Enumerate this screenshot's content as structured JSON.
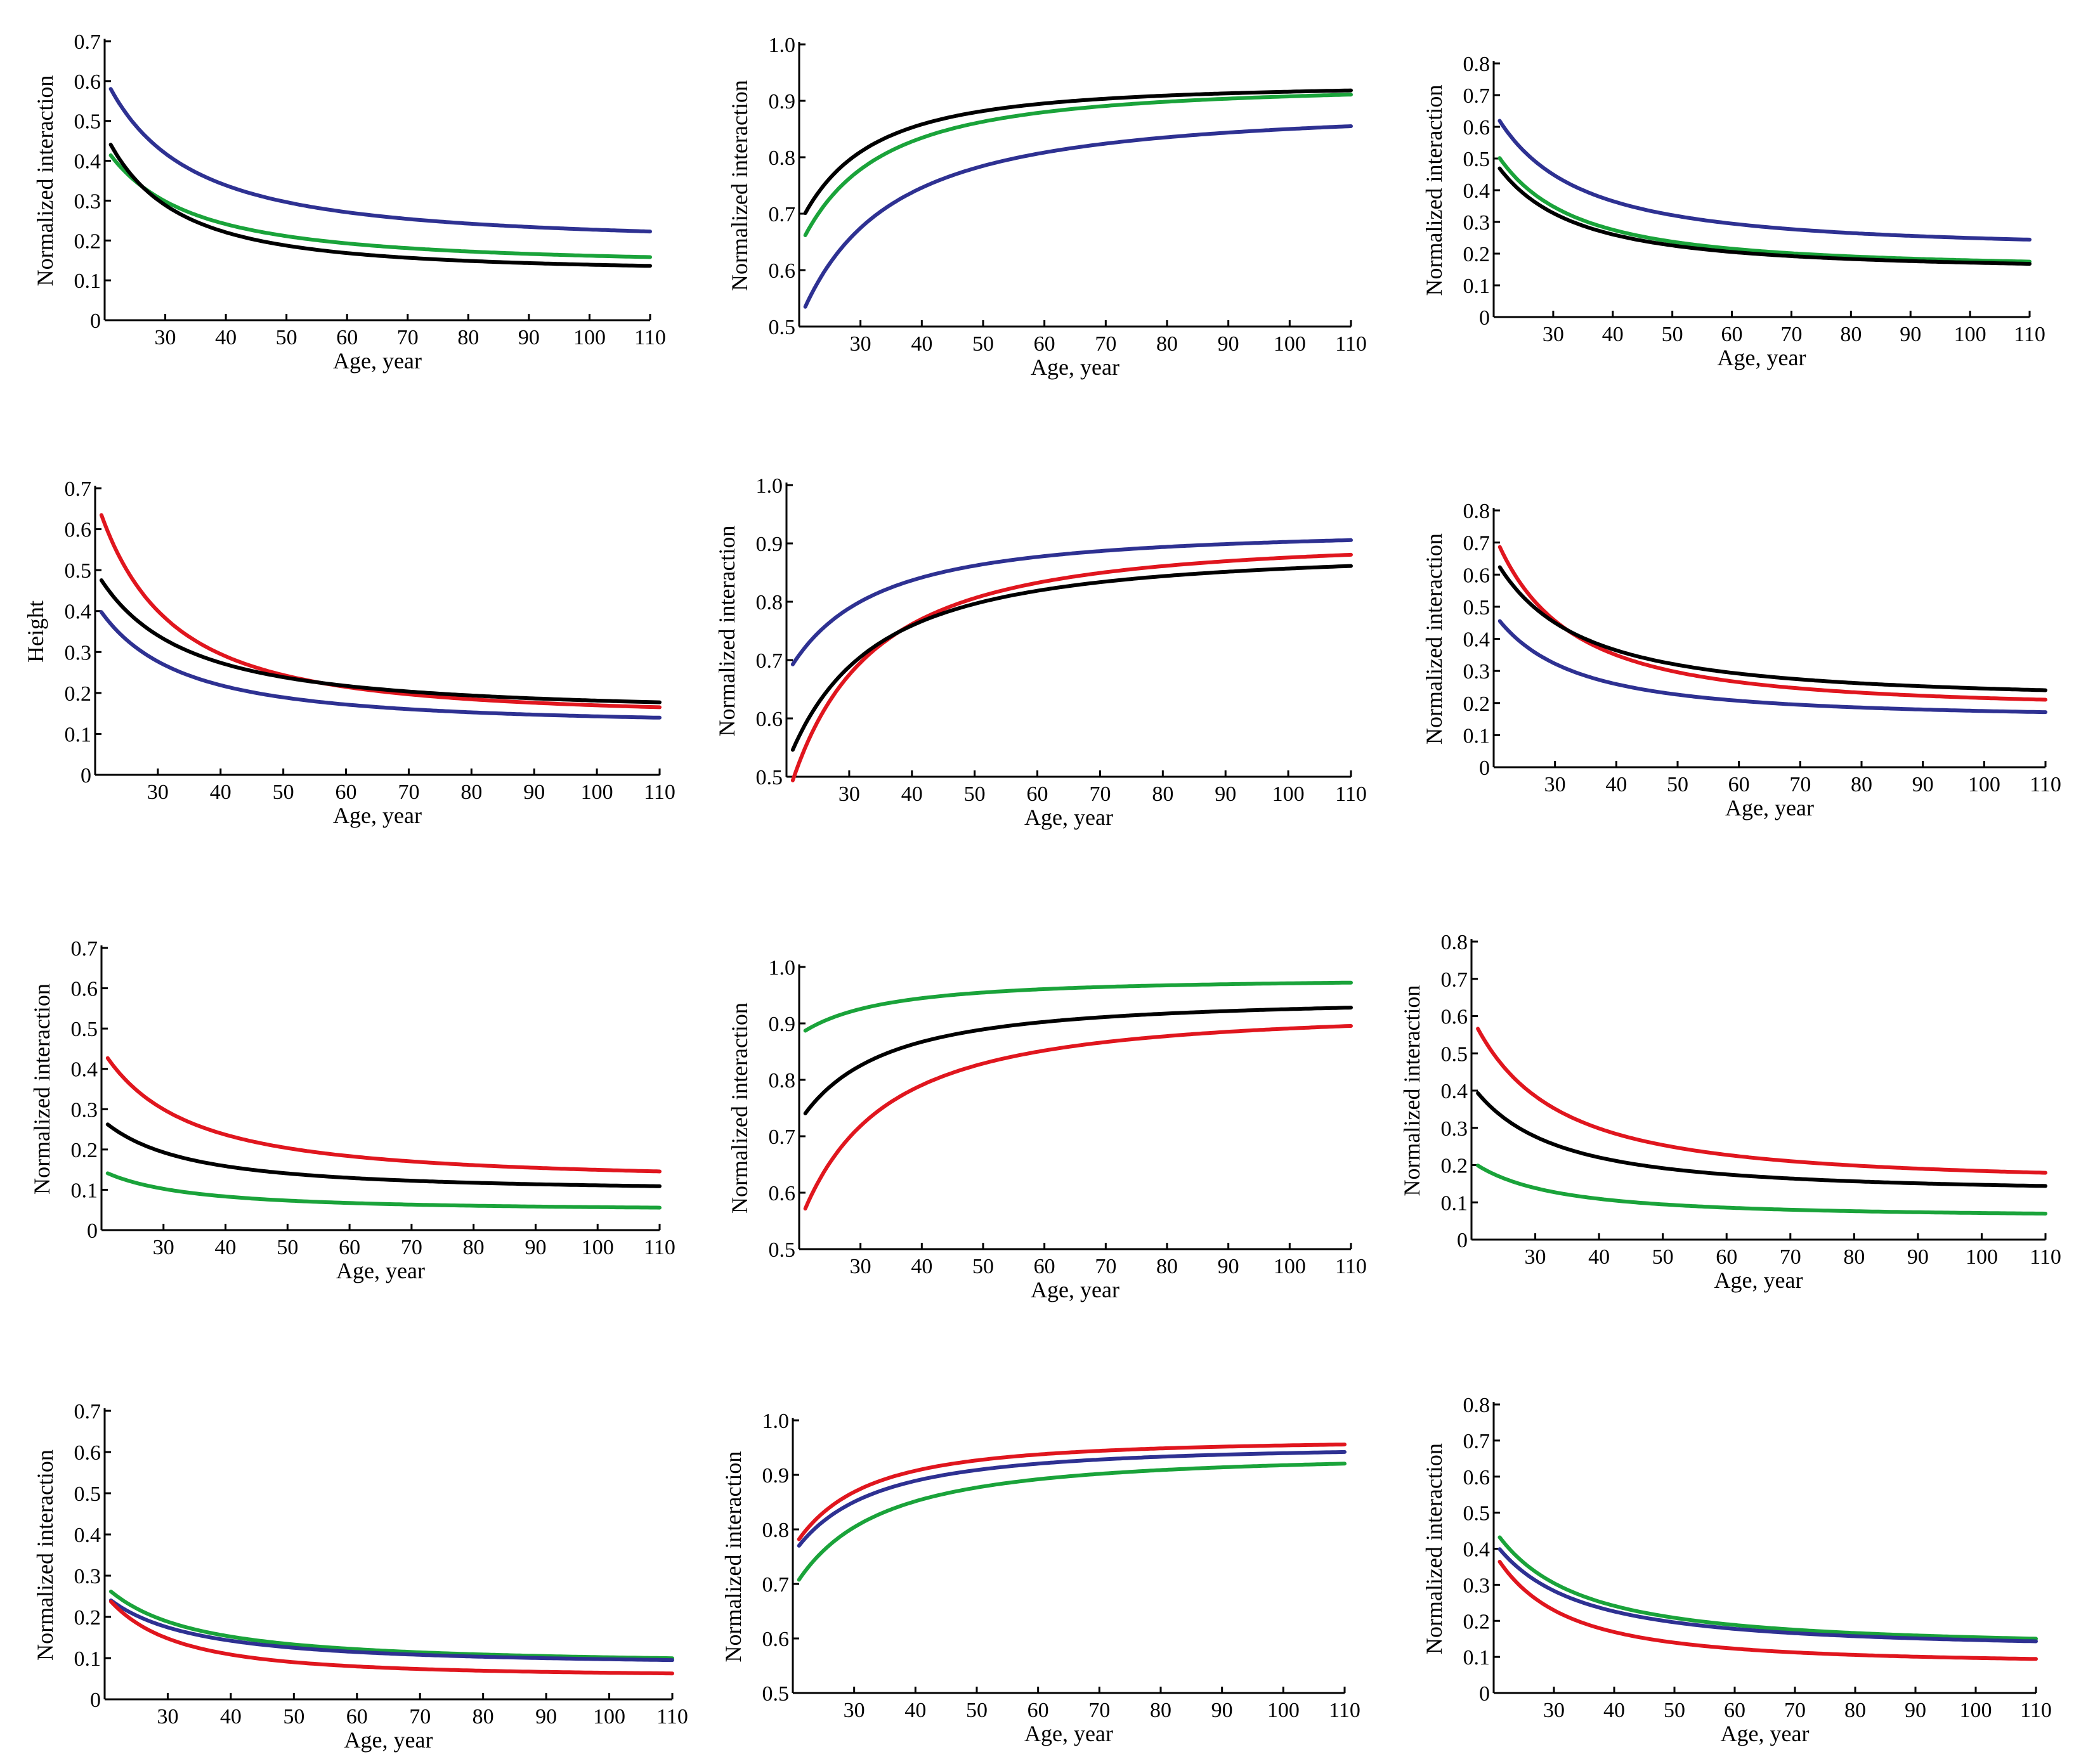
{
  "figure": {
    "title": "",
    "curve_parameterization": "y = a + b * ((20/age)^p)"
  },
  "colors": {
    "blue": "#2e3192",
    "green": "#1aa33a",
    "black": "#000000",
    "red": "#e0161e"
  },
  "chart_data": [
    {
      "type": "line",
      "xlabel": "Age, year",
      "ylabel": "Normalized interaction",
      "xlim": [
        20,
        110
      ],
      "ylim": [
        0,
        0.7
      ],
      "xticks": [
        "30",
        "40",
        "50",
        "60",
        "70",
        "80",
        "90",
        "100",
        "110"
      ],
      "yticks": [
        "0",
        "0.1",
        "0.2",
        "0.3",
        "0.4",
        "0.5",
        "0.6",
        "0.7"
      ],
      "series": [
        {
          "name": "blue",
          "color": "#2e3192",
          "age_start": 21,
          "age_end": 110,
          "a": 0.19,
          "b": 0.42,
          "p": 1.5
        },
        {
          "name": "green",
          "color": "#1aa33a",
          "age_start": 21,
          "age_end": 110,
          "a": 0.135,
          "b": 0.3,
          "p": 1.5
        },
        {
          "name": "black",
          "color": "#000000",
          "age_start": 21,
          "age_end": 110,
          "a": 0.12,
          "b": 0.35,
          "p": 1.8
        }
      ]
    },
    {
      "type": "line",
      "xlabel": "Age, year",
      "ylabel": "Normalized interaction",
      "xlim": [
        20,
        110
      ],
      "ylim": [
        0.5,
        1.0
      ],
      "xticks": [
        "30",
        "40",
        "50",
        "60",
        "70",
        "80",
        "90",
        "100",
        "110"
      ],
      "yticks": [
        "0.5",
        "0.6",
        "0.7",
        "0.8",
        "0.9",
        "1.0"
      ],
      "series": [
        {
          "name": "black",
          "color": "#000000",
          "age_start": 21,
          "age_end": 110,
          "a": 0.93,
          "b": -0.25,
          "p": 1.8
        },
        {
          "name": "green",
          "color": "#1aa33a",
          "age_start": 21,
          "age_end": 110,
          "a": 0.93,
          "b": -0.29,
          "p": 1.6
        },
        {
          "name": "blue",
          "color": "#2e3192",
          "age_start": 21,
          "age_end": 110,
          "a": 0.89,
          "b": -0.38,
          "p": 1.4
        }
      ]
    },
    {
      "type": "line",
      "xlabel": "Age, year",
      "ylabel": "Normalized interaction",
      "xlim": [
        20,
        110
      ],
      "ylim": [
        0,
        0.8
      ],
      "xticks": [
        "30",
        "40",
        "50",
        "60",
        "70",
        "80",
        "90",
        "100",
        "110"
      ],
      "yticks": [
        "0",
        "0.1",
        "0.2",
        "0.3",
        "0.4",
        "0.5",
        "0.6",
        "0.7",
        "0.8"
      ],
      "series": [
        {
          "name": "blue",
          "color": "#2e3192",
          "age_start": 21,
          "age_end": 110,
          "a": 0.21,
          "b": 0.44,
          "p": 1.5
        },
        {
          "name": "green",
          "color": "#1aa33a",
          "age_start": 21,
          "age_end": 110,
          "a": 0.15,
          "b": 0.38,
          "p": 1.6
        },
        {
          "name": "black",
          "color": "#000000",
          "age_start": 21,
          "age_end": 110,
          "a": 0.145,
          "b": 0.35,
          "p": 1.6
        }
      ]
    },
    {
      "type": "line",
      "xlabel": "Age, year",
      "ylabel": "Height",
      "xlim": [
        20,
        110
      ],
      "ylim": [
        0,
        0.7
      ],
      "xticks": [
        "30",
        "40",
        "50",
        "60",
        "70",
        "80",
        "90",
        "100",
        "110"
      ],
      "yticks": [
        "0",
        "0.1",
        "0.2",
        "0.3",
        "0.4",
        "0.5",
        "0.6",
        "0.7"
      ],
      "series": [
        {
          "name": "red",
          "color": "#e0161e",
          "age_start": 21,
          "age_end": 110,
          "a": 0.14,
          "b": 0.54,
          "p": 1.8
        },
        {
          "name": "black",
          "color": "#000000",
          "age_start": 21,
          "age_end": 110,
          "a": 0.15,
          "b": 0.35,
          "p": 1.5
        },
        {
          "name": "blue",
          "color": "#2e3192",
          "age_start": 21,
          "age_end": 110,
          "a": 0.12,
          "b": 0.3,
          "p": 1.6
        }
      ]
    },
    {
      "type": "line",
      "xlabel": "Age, year",
      "ylabel": "Normalized interaction",
      "xlim": [
        20,
        110
      ],
      "ylim": [
        0.5,
        1.0
      ],
      "xticks": [
        "30",
        "40",
        "50",
        "60",
        "70",
        "80",
        "90",
        "100",
        "110"
      ],
      "yticks": [
        "0.5",
        "0.6",
        "0.7",
        "0.8",
        "0.9",
        "1.0"
      ],
      "series": [
        {
          "name": "blue",
          "color": "#2e3192",
          "age_start": 21,
          "age_end": 110,
          "a": 0.925,
          "b": -0.25,
          "p": 1.5
        },
        {
          "name": "red",
          "color": "#e0161e",
          "age_start": 21,
          "age_end": 110,
          "a": 0.91,
          "b": -0.45,
          "p": 1.6
        },
        {
          "name": "black",
          "color": "#000000",
          "age_start": 21,
          "age_end": 110,
          "a": 0.89,
          "b": -0.37,
          "p": 1.5
        }
      ]
    },
    {
      "type": "line",
      "xlabel": "Age, year",
      "ylabel": "Normalized interaction",
      "xlim": [
        20,
        110
      ],
      "ylim": [
        0,
        0.8
      ],
      "xticks": [
        "30",
        "40",
        "50",
        "60",
        "70",
        "80",
        "90",
        "100",
        "110"
      ],
      "yticks": [
        "0",
        "0.1",
        "0.2",
        "0.3",
        "0.4",
        "0.5",
        "0.6",
        "0.7",
        "0.8"
      ],
      "series": [
        {
          "name": "red",
          "color": "#e0161e",
          "age_start": 21,
          "age_end": 110,
          "a": 0.18,
          "b": 0.55,
          "p": 1.7
        },
        {
          "name": "black",
          "color": "#000000",
          "age_start": 21,
          "age_end": 110,
          "a": 0.205,
          "b": 0.45,
          "p": 1.5
        },
        {
          "name": "blue",
          "color": "#2e3192",
          "age_start": 21,
          "age_end": 110,
          "a": 0.15,
          "b": 0.33,
          "p": 1.6
        }
      ]
    },
    {
      "type": "line",
      "xlabel": "Age, year",
      "ylabel": "Normalized interaction",
      "xlim": [
        20,
        110
      ],
      "ylim": [
        0,
        0.7
      ],
      "xticks": [
        "30",
        "40",
        "50",
        "60",
        "70",
        "80",
        "90",
        "100",
        "110"
      ],
      "yticks": [
        "0",
        "0.1",
        "0.2",
        "0.3",
        "0.4",
        "0.5",
        "0.6",
        "0.7"
      ],
      "series": [
        {
          "name": "red",
          "color": "#e0161e",
          "age_start": 21,
          "age_end": 110,
          "a": 0.12,
          "b": 0.33,
          "p": 1.5
        },
        {
          "name": "black",
          "color": "#000000",
          "age_start": 21,
          "age_end": 110,
          "a": 0.095,
          "b": 0.18,
          "p": 1.5
        },
        {
          "name": "green",
          "color": "#1aa33a",
          "age_start": 21,
          "age_end": 110,
          "a": 0.048,
          "b": 0.1,
          "p": 1.5
        }
      ]
    },
    {
      "type": "line",
      "xlabel": "Age, year",
      "ylabel": "Normalized interaction",
      "xlim": [
        20,
        110
      ],
      "ylim": [
        0.5,
        1.0
      ],
      "xticks": [
        "30",
        "40",
        "50",
        "60",
        "70",
        "80",
        "90",
        "100",
        "110"
      ],
      "yticks": [
        "0.5",
        "0.6",
        "0.7",
        "0.8",
        "0.9",
        "1.0"
      ],
      "series": [
        {
          "name": "green",
          "color": "#1aa33a",
          "age_start": 21,
          "age_end": 110,
          "a": 0.98,
          "b": -0.1,
          "p": 1.5
        },
        {
          "name": "black",
          "color": "#000000",
          "age_start": 21,
          "age_end": 110,
          "a": 0.945,
          "b": -0.22,
          "p": 1.5
        },
        {
          "name": "red",
          "color": "#e0161e",
          "age_start": 21,
          "age_end": 110,
          "a": 0.925,
          "b": -0.38,
          "p": 1.5
        }
      ]
    },
    {
      "type": "line",
      "xlabel": "Age, year",
      "ylabel": "Normalized interaction",
      "xlim": [
        20,
        110
      ],
      "ylim": [
        0,
        0.8
      ],
      "xticks": [
        "30",
        "40",
        "50",
        "60",
        "70",
        "80",
        "90",
        "100",
        "110"
      ],
      "yticks": [
        "0",
        "0.1",
        "0.2",
        "0.3",
        "0.4",
        "0.5",
        "0.6",
        "0.7",
        "0.8"
      ],
      "series": [
        {
          "name": "red",
          "color": "#e0161e",
          "age_start": 21,
          "age_end": 110,
          "a": 0.15,
          "b": 0.45,
          "p": 1.6
        },
        {
          "name": "black",
          "color": "#000000",
          "age_start": 21,
          "age_end": 110,
          "a": 0.125,
          "b": 0.29,
          "p": 1.6
        },
        {
          "name": "green",
          "color": "#1aa33a",
          "age_start": 21,
          "age_end": 110,
          "a": 0.06,
          "b": 0.15,
          "p": 1.6
        }
      ]
    },
    {
      "type": "line",
      "xlabel": "Age, year",
      "ylabel": "Normalized interaction",
      "xlim": [
        20,
        110
      ],
      "ylim": [
        0,
        0.7
      ],
      "xticks": [
        "30",
        "40",
        "50",
        "60",
        "70",
        "80",
        "90",
        "100",
        "110"
      ],
      "yticks": [
        "0",
        "0.1",
        "0.2",
        "0.3",
        "0.4",
        "0.5",
        "0.6",
        "0.7"
      ],
      "series": [
        {
          "name": "green",
          "color": "#1aa33a",
          "age_start": 21,
          "age_end": 110,
          "a": 0.085,
          "b": 0.19,
          "p": 1.5
        },
        {
          "name": "blue",
          "color": "#2e3192",
          "age_start": 21,
          "age_end": 110,
          "a": 0.082,
          "b": 0.17,
          "p": 1.5
        },
        {
          "name": "red",
          "color": "#e0161e",
          "age_start": 21,
          "age_end": 110,
          "a": 0.055,
          "b": 0.2,
          "p": 1.9
        }
      ]
    },
    {
      "type": "line",
      "xlabel": "Age, year",
      "ylabel": "Normalized interaction",
      "xlim": [
        20,
        110
      ],
      "ylim": [
        0.5,
        1.0
      ],
      "xticks": [
        "30",
        "40",
        "50",
        "60",
        "70",
        "80",
        "90",
        "100",
        "110"
      ],
      "yticks": [
        "0.5",
        "0.6",
        "0.7",
        "0.8",
        "0.9",
        "1.0"
      ],
      "series": [
        {
          "name": "red",
          "color": "#e0161e",
          "age_start": 21,
          "age_end": 110,
          "a": 0.965,
          "b": -0.2,
          "p": 1.8
        },
        {
          "name": "blue",
          "color": "#2e3192",
          "age_start": 21,
          "age_end": 110,
          "a": 0.955,
          "b": -0.2,
          "p": 1.6
        },
        {
          "name": "green",
          "color": "#1aa33a",
          "age_start": 21,
          "age_end": 110,
          "a": 0.94,
          "b": -0.25,
          "p": 1.5
        }
      ]
    },
    {
      "type": "line",
      "xlabel": "Age, year",
      "ylabel": "Normalized interaction",
      "xlim": [
        20,
        110
      ],
      "ylim": [
        0,
        0.8
      ],
      "xticks": [
        "30",
        "40",
        "50",
        "60",
        "70",
        "80",
        "90",
        "100",
        "110"
      ],
      "yticks": [
        "0",
        "0.1",
        "0.2",
        "0.3",
        "0.4",
        "0.5",
        "0.6",
        "0.7",
        "0.8"
      ],
      "series": [
        {
          "name": "green",
          "color": "#1aa33a",
          "age_start": 21,
          "age_end": 110,
          "a": 0.125,
          "b": 0.33,
          "p": 1.5
        },
        {
          "name": "blue",
          "color": "#2e3192",
          "age_start": 21,
          "age_end": 110,
          "a": 0.12,
          "b": 0.3,
          "p": 1.5
        },
        {
          "name": "red",
          "color": "#e0161e",
          "age_start": 21,
          "age_end": 110,
          "a": 0.08,
          "b": 0.31,
          "p": 1.8
        }
      ]
    }
  ]
}
